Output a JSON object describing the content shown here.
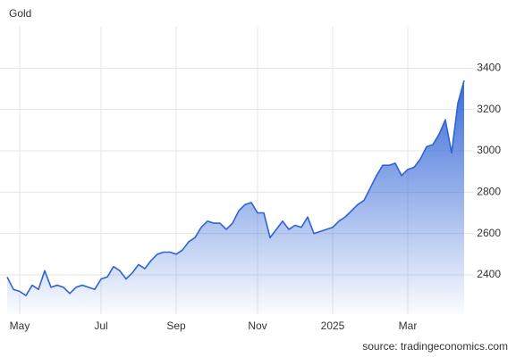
{
  "chart_data": {
    "type": "area",
    "title": "Gold",
    "source": "source: tradingeconomics.com",
    "categories": [
      null,
      null,
      "May",
      null,
      null,
      null,
      null,
      null,
      null,
      null,
      null,
      null,
      null,
      null,
      null,
      "Jul",
      null,
      null,
      null,
      null,
      null,
      null,
      null,
      null,
      null,
      null,
      null,
      "Sep",
      null,
      null,
      null,
      null,
      null,
      null,
      null,
      null,
      null,
      null,
      null,
      null,
      "Nov",
      null,
      null,
      null,
      null,
      null,
      null,
      null,
      null,
      null,
      null,
      null,
      "2025",
      null,
      null,
      null,
      null,
      null,
      null,
      null,
      null,
      null,
      null,
      null,
      "Mar",
      null,
      null,
      null,
      null,
      null,
      null,
      null,
      null,
      null
    ],
    "values": [
      2390,
      2330,
      2320,
      2300,
      2350,
      2330,
      2420,
      2340,
      2350,
      2340,
      2310,
      2340,
      2350,
      2340,
      2330,
      2380,
      2390,
      2440,
      2420,
      2380,
      2410,
      2450,
      2430,
      2470,
      2500,
      2510,
      2510,
      2500,
      2520,
      2560,
      2580,
      2630,
      2660,
      2650,
      2650,
      2620,
      2650,
      2710,
      2740,
      2750,
      2700,
      2700,
      2580,
      2620,
      2660,
      2620,
      2640,
      2630,
      2680,
      2600,
      2610,
      2620,
      2630,
      2660,
      2680,
      2710,
      2740,
      2760,
      2820,
      2880,
      2930,
      2930,
      2940,
      2880,
      2910,
      2920,
      2960,
      3020,
      3030,
      3080,
      3150,
      2990,
      3230,
      3340
    ],
    "color": "#2e63d6",
    "ylim": [
      2210,
      3600
    ],
    "yticks": [
      2400,
      2600,
      2800,
      3000,
      3200,
      3400
    ],
    "grid": true
  }
}
